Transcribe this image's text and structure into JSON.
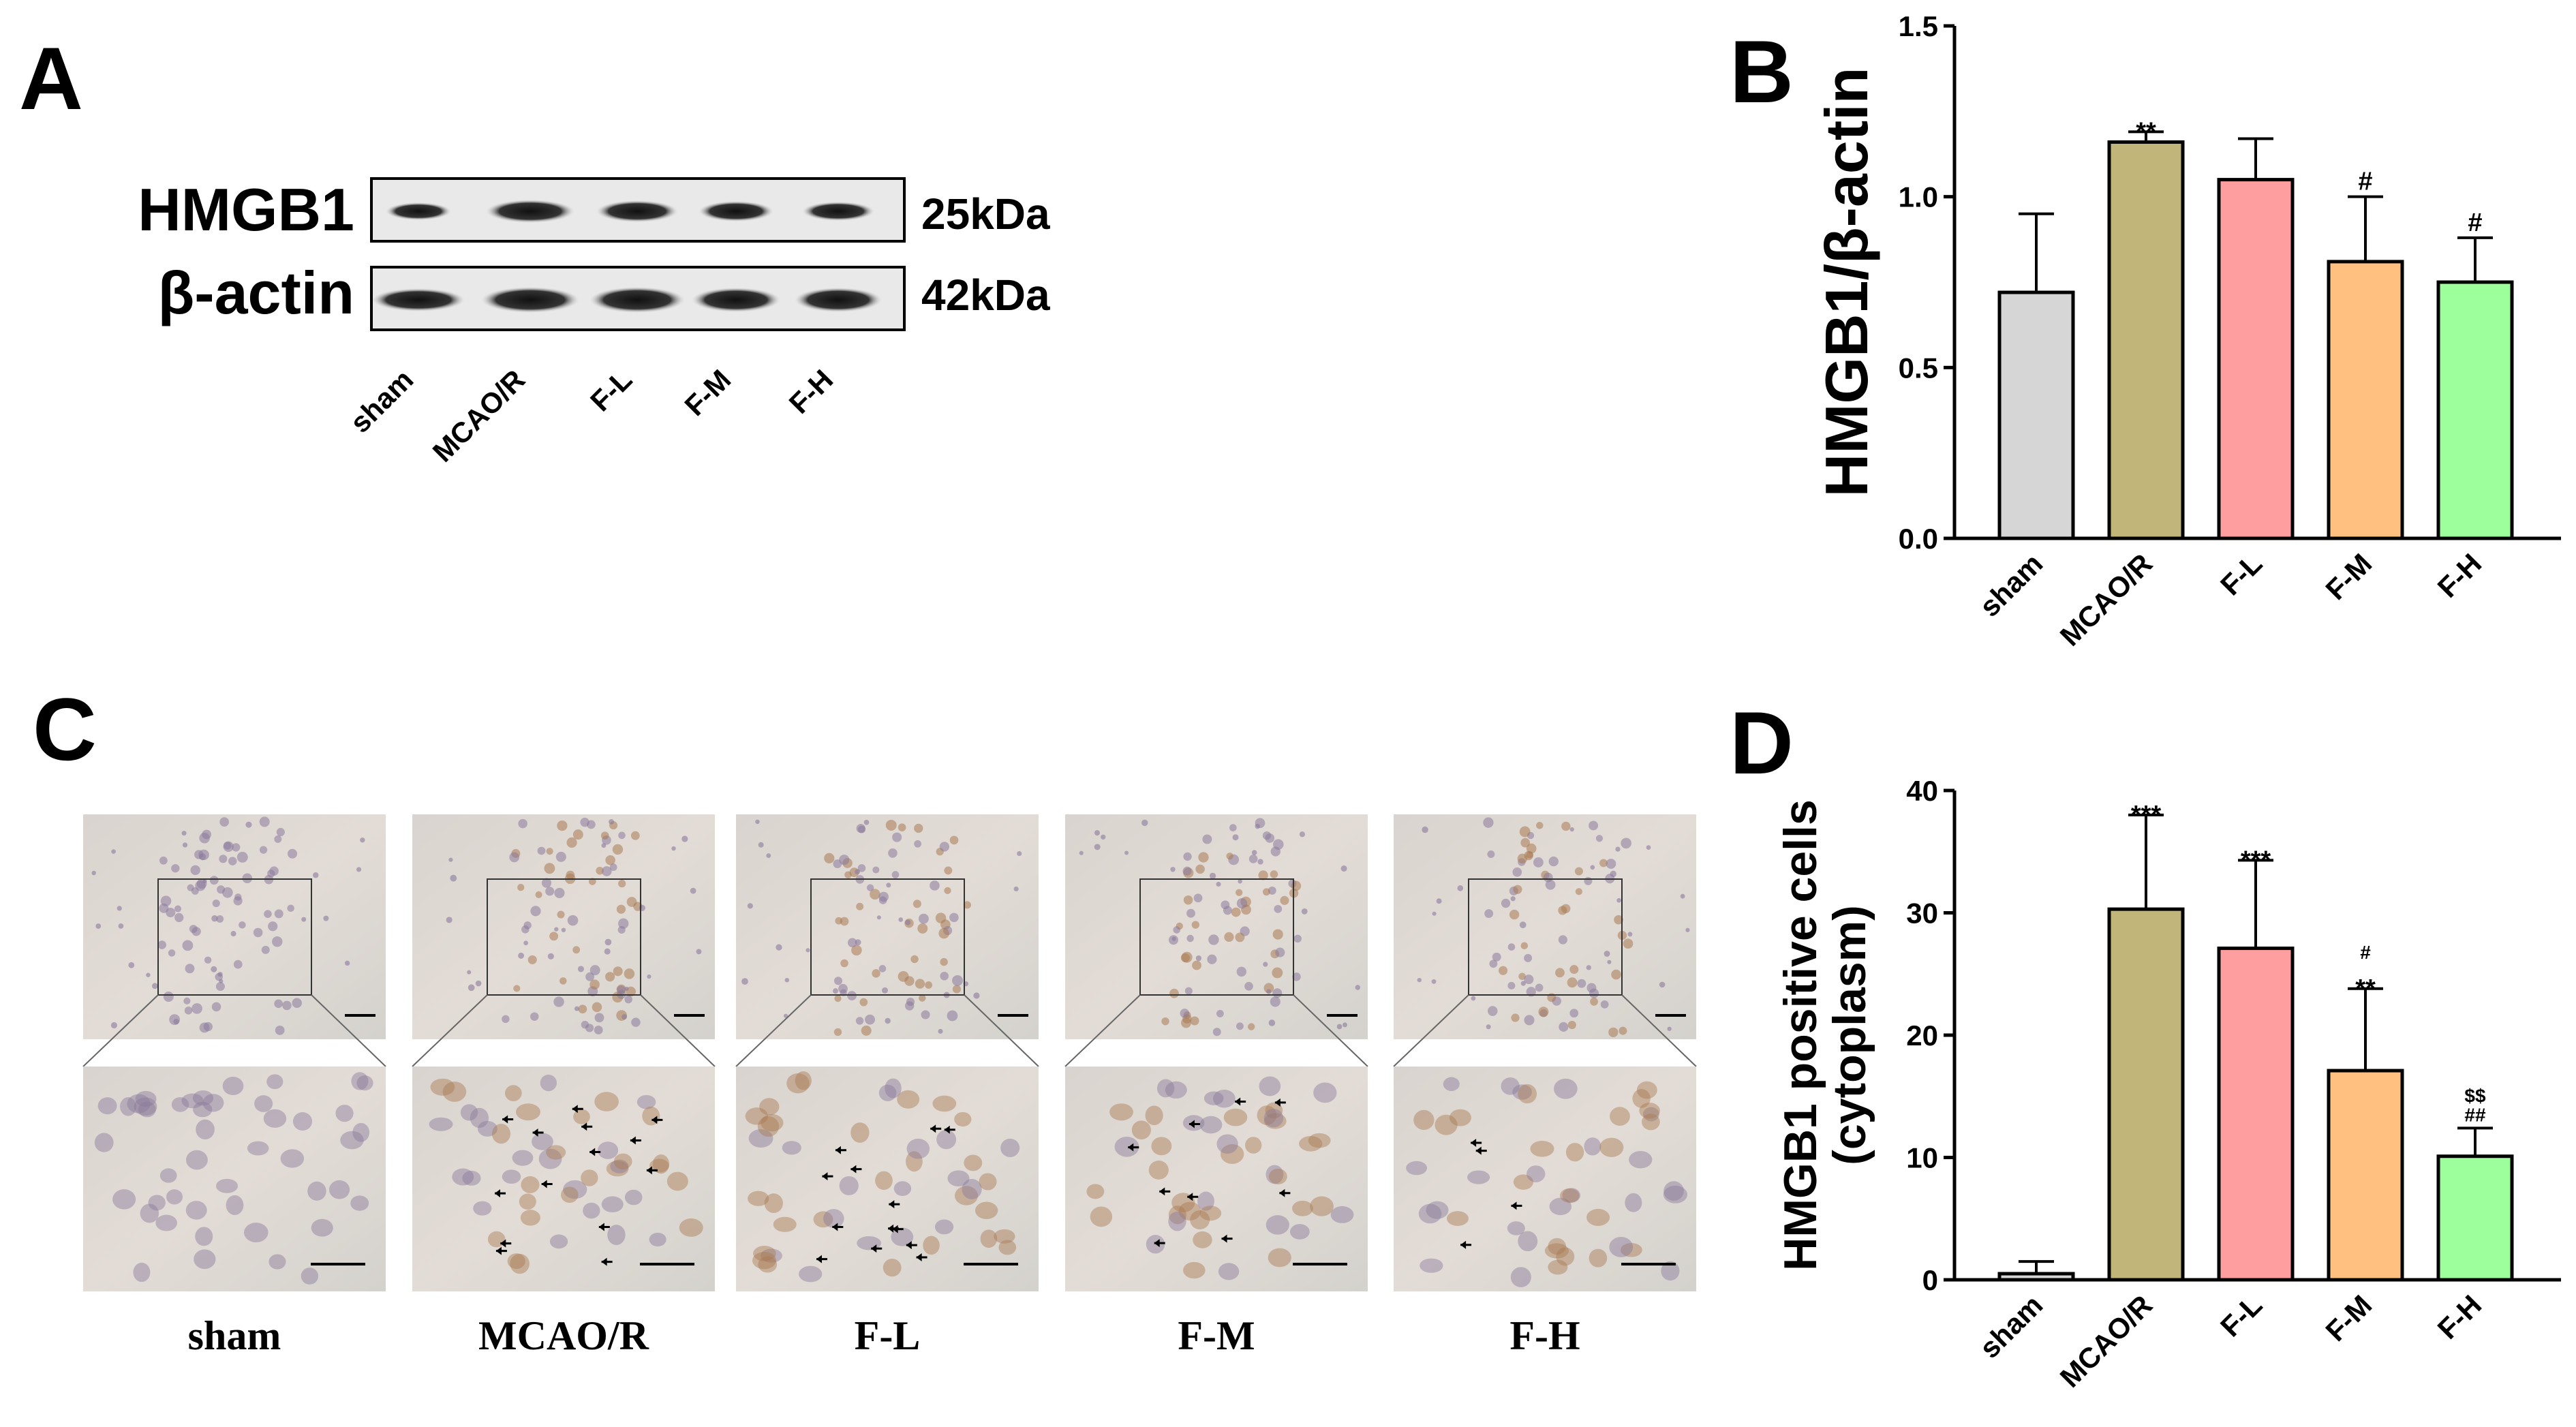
{
  "panels": {
    "a": "A",
    "b": "B",
    "c": "C",
    "d": "D"
  },
  "western_blot": {
    "rows": [
      {
        "protein": "HMGB1",
        "size": "25kDa"
      },
      {
        "protein": "β-actin",
        "size": "42kDa"
      }
    ],
    "lanes": [
      "sham",
      "MCAO/R",
      "F-L",
      "F-M",
      "F-H"
    ]
  },
  "ihc": {
    "groups": [
      "sham",
      "MCAO/R",
      "F-L",
      "F-M",
      "F-H"
    ],
    "arrow_counts": [
      0,
      14,
      13,
      9,
      4
    ],
    "tissue_tint": "#e3dcd6",
    "cell_color": "#8a7a9c",
    "positive_cell_color": "#a97a52"
  },
  "chart_data": [
    {
      "type": "bar",
      "ylabel": "HMGB1/β-actin",
      "ylim": [
        0,
        1.5
      ],
      "yticks": [
        "0.0",
        "0.5",
        "1.0",
        "1.5"
      ],
      "categories": [
        "sham",
        "MCAO/R",
        "F-L",
        "F-M",
        "F-H"
      ],
      "values": [
        0.72,
        1.16,
        1.05,
        0.81,
        0.75
      ],
      "errors": [
        0.23,
        0.03,
        0.12,
        0.19,
        0.13
      ],
      "significance": [
        [],
        [
          "**"
        ],
        [],
        [
          "#"
        ],
        [
          "#"
        ]
      ],
      "colors": [
        "#d6d6d6",
        "#c2b57a",
        "#ff9e9e",
        "#ffc080",
        "#9cff9c"
      ]
    },
    {
      "type": "bar",
      "ylabel": "HMGB1 positive cells",
      "ylabel2": "(cytoplasm)",
      "ylim": [
        0,
        40
      ],
      "yticks": [
        "0",
        "10",
        "20",
        "30",
        "40"
      ],
      "categories": [
        "sham",
        "MCAO/R",
        "F-L",
        "F-M",
        "F-H"
      ],
      "values": [
        0.5,
        30.3,
        27.1,
        17.1,
        10.1
      ],
      "errors": [
        1.0,
        7.7,
        7.2,
        6.7,
        2.3
      ],
      "significance": [
        [],
        [
          "***"
        ],
        [
          "***"
        ],
        [
          "**",
          "#"
        ],
        [
          "##",
          "$$"
        ]
      ],
      "colors": [
        "#d6d6d6",
        "#c2b57a",
        "#ff9e9e",
        "#ffc080",
        "#9cff9c"
      ]
    }
  ]
}
